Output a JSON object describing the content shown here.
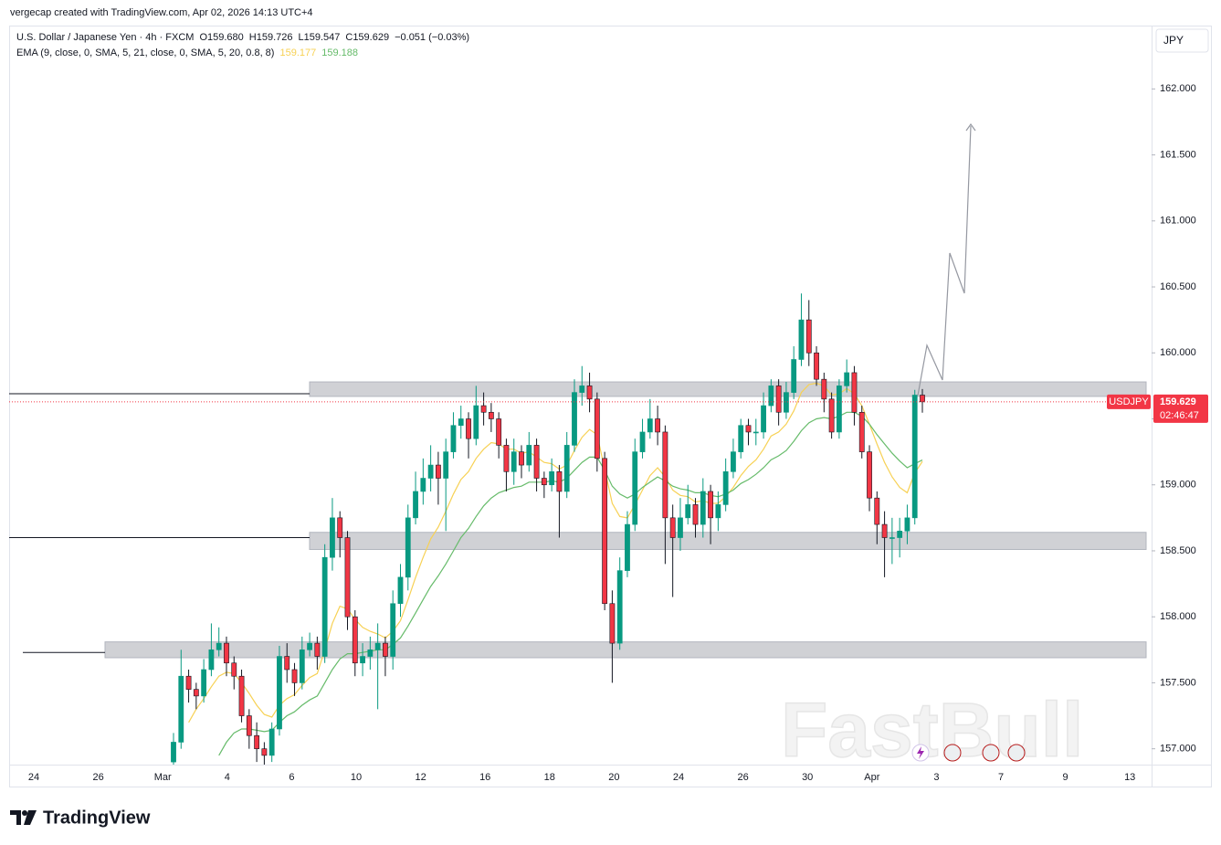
{
  "header": {
    "credit": "vergecap created with TradingView.com, Apr 02, 2026 14:13 UTC+4"
  },
  "chart_data": {
    "type": "candlestick",
    "symbol_title": "U.S. Dollar / Japanese Yen · 4h · FXCM",
    "ohlc_labels": [
      "O159.680",
      "H159.726",
      "L159.547",
      "C159.629",
      "−0.051 (−0.03%)"
    ],
    "indicator": {
      "label": "EMA (9, close, 0, SMA, 5, 21, close, 0, SMA, 5, 20, 0.8, 8)",
      "value_labels": [
        "159.177",
        "159.188"
      ]
    },
    "currency": "JPY",
    "symbol_tag": "USDJPY",
    "price_label": "159.629",
    "countdown": "02:46:47",
    "watermark": "FastBull",
    "brand": "TradingView",
    "up_color": "#089981",
    "down_color": "#f23645",
    "ylim": [
      156.88,
      162.48
    ],
    "yticks": [
      {
        "value": 157,
        "label": "157.000"
      },
      {
        "value": 157.5,
        "label": "157.500"
      },
      {
        "value": 158,
        "label": "158.000"
      },
      {
        "value": 158.5,
        "label": "158.500"
      },
      {
        "value": 159,
        "label": "159.000"
      },
      {
        "value": 159.5,
        "label": "159.500"
      },
      {
        "value": 160,
        "label": "160.000"
      },
      {
        "value": 160.5,
        "label": "160.500"
      },
      {
        "value": 161,
        "label": "161.000"
      },
      {
        "value": 161.5,
        "label": "161.500"
      },
      {
        "value": 162,
        "label": "162.000"
      }
    ],
    "xtick_labels": [
      "24",
      "26",
      "Mar",
      "4",
      "6",
      "10",
      "12",
      "16",
      "18",
      "20",
      "24",
      "26",
      "30",
      "Apr",
      "3",
      "7",
      "9",
      "13"
    ],
    "open": [
      156.9,
      157.05,
      157.55,
      157.45,
      157.4,
      157.6,
      157.75,
      157.8,
      157.65,
      157.55,
      157.25,
      157.1,
      157.0,
      156.95,
      157.15,
      157.7,
      157.6,
      157.5,
      157.75,
      157.8,
      157.7,
      158.45,
      158.75,
      158.6,
      158.0,
      157.65,
      157.7,
      157.75,
      157.8,
      157.7,
      158.1,
      158.3,
      158.75,
      158.95,
      159.05,
      159.15,
      159.05,
      159.25,
      159.45,
      159.5,
      159.35,
      159.6,
      159.55,
      159.5,
      159.3,
      159.1,
      159.25,
      159.15,
      159.3,
      159.05,
      159.0,
      159.1,
      158.95,
      159.3,
      159.7,
      159.75,
      159.65,
      159.2,
      158.1,
      157.8,
      158.35,
      158.7,
      159.25,
      159.4,
      159.5,
      159.4,
      158.75,
      158.6,
      158.75,
      158.85,
      158.7,
      158.95,
      158.75,
      158.85,
      159.1,
      159.25,
      159.45,
      159.4,
      159.4,
      159.6,
      159.75,
      159.55,
      159.7,
      159.95,
      160.25,
      160.0,
      159.8,
      159.65,
      159.4,
      159.75,
      159.85,
      159.55,
      159.25,
      158.9,
      158.7,
      158.6,
      158.6,
      158.65,
      158.75,
      159.68
    ],
    "high": [
      157.12,
      157.75,
      157.6,
      157.5,
      157.68,
      157.95,
      157.92,
      157.85,
      157.7,
      157.6,
      157.3,
      157.2,
      157.05,
      157.2,
      157.78,
      157.8,
      157.65,
      157.85,
      157.88,
      157.85,
      158.55,
      158.9,
      158.8,
      158.65,
      158.05,
      157.8,
      157.85,
      157.95,
      157.85,
      158.2,
      158.4,
      158.85,
      159.1,
      159.2,
      159.3,
      159.25,
      159.35,
      159.55,
      159.6,
      159.55,
      159.75,
      159.7,
      159.62,
      159.55,
      159.35,
      159.35,
      159.3,
      159.4,
      159.35,
      159.1,
      159.2,
      159.15,
      159.4,
      159.8,
      159.9,
      159.85,
      159.7,
      159.25,
      158.2,
      158.45,
      158.8,
      159.35,
      159.5,
      159.65,
      159.6,
      159.45,
      158.85,
      158.9,
      159.0,
      158.9,
      159.05,
      159.0,
      158.95,
      159.2,
      159.35,
      159.5,
      159.5,
      159.5,
      159.7,
      159.8,
      159.8,
      159.78,
      160.05,
      160.45,
      160.4,
      160.05,
      159.85,
      159.7,
      159.8,
      159.95,
      159.9,
      159.6,
      159.3,
      158.95,
      158.8,
      158.75,
      158.75,
      158.85,
      159.72,
      159.726
    ],
    "low": [
      156.85,
      157.0,
      157.35,
      157.3,
      157.35,
      157.55,
      157.7,
      157.55,
      157.45,
      157.2,
      157.0,
      156.9,
      156.85,
      156.9,
      157.1,
      157.5,
      157.4,
      157.45,
      157.7,
      157.6,
      157.65,
      158.35,
      158.45,
      157.9,
      157.55,
      157.55,
      157.6,
      157.3,
      157.55,
      157.6,
      158.0,
      158.2,
      158.7,
      158.85,
      158.95,
      158.85,
      158.65,
      159.2,
      159.35,
      159.2,
      159.3,
      159.45,
      159.4,
      159.2,
      158.95,
      159.0,
      159.05,
      159.1,
      158.95,
      158.9,
      158.95,
      158.6,
      158.9,
      159.25,
      159.6,
      159.55,
      159.1,
      158.05,
      157.5,
      157.75,
      158.3,
      158.65,
      159.2,
      159.35,
      159.3,
      158.4,
      158.15,
      158.5,
      158.7,
      158.6,
      158.6,
      158.55,
      158.65,
      158.8,
      159.05,
      159.2,
      159.3,
      159.3,
      159.35,
      159.55,
      159.45,
      159.5,
      159.65,
      159.9,
      159.9,
      159.75,
      159.55,
      159.35,
      159.35,
      159.7,
      159.45,
      159.2,
      158.8,
      158.55,
      158.3,
      158.4,
      158.45,
      158.55,
      158.7,
      159.547
    ],
    "close": [
      157.05,
      157.55,
      157.45,
      157.4,
      157.6,
      157.75,
      157.8,
      157.65,
      157.55,
      157.25,
      157.1,
      157.0,
      156.95,
      157.15,
      157.7,
      157.6,
      157.5,
      157.75,
      157.8,
      157.7,
      158.45,
      158.75,
      158.6,
      158.0,
      157.65,
      157.7,
      157.75,
      157.8,
      157.7,
      158.1,
      158.3,
      158.75,
      158.95,
      159.05,
      159.15,
      159.05,
      159.25,
      159.45,
      159.5,
      159.35,
      159.6,
      159.55,
      159.5,
      159.3,
      159.1,
      159.25,
      159.15,
      159.3,
      159.05,
      159.0,
      159.1,
      158.95,
      159.3,
      159.7,
      159.75,
      159.65,
      159.2,
      158.1,
      157.8,
      158.35,
      158.7,
      159.25,
      159.4,
      159.5,
      159.4,
      158.75,
      158.6,
      158.75,
      158.85,
      158.7,
      158.95,
      158.75,
      158.85,
      159.1,
      159.25,
      159.45,
      159.4,
      159.4,
      159.6,
      159.75,
      159.55,
      159.7,
      159.95,
      160.25,
      160.0,
      159.8,
      159.65,
      159.4,
      159.75,
      159.85,
      159.55,
      159.25,
      158.9,
      158.7,
      158.6,
      158.6,
      158.65,
      158.75,
      159.68,
      159.629
    ],
    "series": [
      {
        "color": "#f7d154",
        "values": [
          null,
          null,
          157.2,
          157.3,
          157.38,
          157.47,
          157.55,
          157.58,
          157.57,
          157.5,
          157.42,
          157.33,
          157.26,
          157.24,
          157.33,
          157.38,
          157.41,
          157.48,
          157.54,
          157.57,
          157.75,
          157.95,
          158.08,
          158.06,
          157.98,
          157.92,
          157.89,
          157.87,
          157.84,
          157.89,
          157.97,
          158.13,
          158.3,
          158.45,
          158.59,
          158.68,
          158.8,
          158.93,
          159.04,
          159.1,
          159.2,
          159.27,
          159.32,
          159.31,
          159.27,
          159.27,
          159.24,
          159.25,
          159.21,
          159.17,
          159.16,
          159.12,
          159.15,
          159.26,
          159.36,
          159.42,
          159.38,
          159.12,
          158.86,
          158.76,
          158.75,
          158.85,
          158.96,
          159.07,
          159.13,
          159.06,
          158.96,
          158.92,
          158.91,
          158.87,
          158.88,
          158.86,
          158.86,
          158.91,
          158.98,
          159.07,
          159.14,
          159.19,
          159.27,
          159.37,
          159.4,
          159.46,
          159.56,
          159.7,
          159.76,
          159.77,
          159.75,
          159.68,
          159.69,
          159.73,
          159.69,
          159.6,
          159.46,
          159.31,
          159.17,
          159.06,
          158.98,
          158.94,
          159.09,
          159.177
        ]
      },
      {
        "color": "#66bb6a",
        "values": [
          null,
          null,
          null,
          null,
          null,
          null,
          156.95,
          157.05,
          157.12,
          157.15,
          157.15,
          157.14,
          157.13,
          157.14,
          157.2,
          157.25,
          157.28,
          157.33,
          157.37,
          157.4,
          157.5,
          157.6,
          157.68,
          157.72,
          157.72,
          157.73,
          157.74,
          157.75,
          157.75,
          157.79,
          157.84,
          157.93,
          158.03,
          158.13,
          158.23,
          158.31,
          158.4,
          158.5,
          158.6,
          158.67,
          158.76,
          158.84,
          158.9,
          158.94,
          158.96,
          158.98,
          158.99,
          159.02,
          159.02,
          159.02,
          159.03,
          159.02,
          159.05,
          159.11,
          159.17,
          159.21,
          159.21,
          159.11,
          158.99,
          158.93,
          158.9,
          158.93,
          158.98,
          159.02,
          159.06,
          159.03,
          158.99,
          158.97,
          158.96,
          158.94,
          158.94,
          158.92,
          158.91,
          158.93,
          158.96,
          159.01,
          159.04,
          159.08,
          159.13,
          159.19,
          159.22,
          159.26,
          159.33,
          159.41,
          159.47,
          159.5,
          159.51,
          159.5,
          159.52,
          159.55,
          159.55,
          159.52,
          159.46,
          159.38,
          159.31,
          159.24,
          159.18,
          159.13,
          159.16,
          159.188
        ]
      }
    ],
    "zones": [
      {
        "top": 159.78,
        "bottom": 159.67
      },
      {
        "top": 158.64,
        "bottom": 158.51
      },
      {
        "top": 157.81,
        "bottom": 157.69
      }
    ],
    "levels": [
      159.69,
      158.6,
      157.73
    ]
  }
}
